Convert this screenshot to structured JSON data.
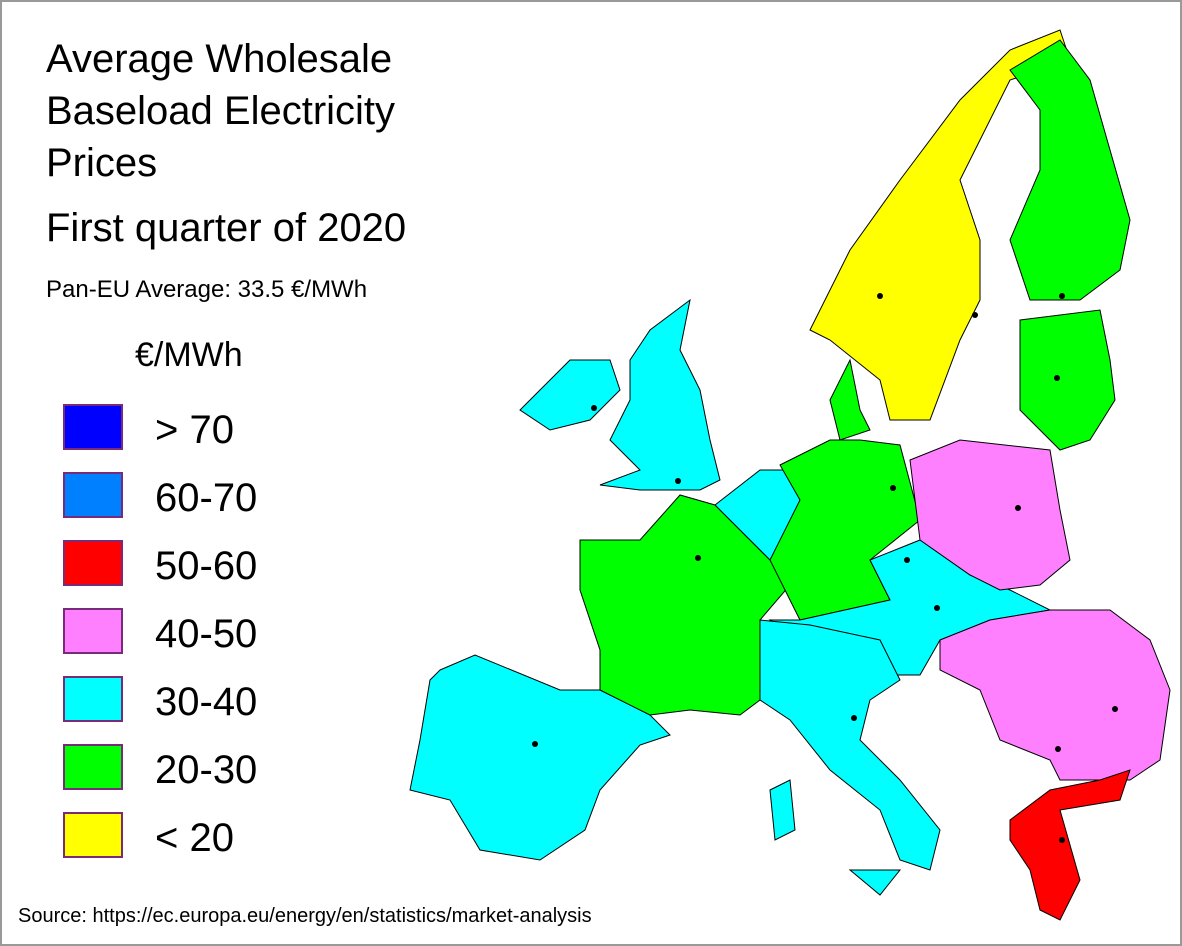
{
  "header": {
    "title_lines": [
      "Average Wholesale",
      "Baseload Electricity",
      "Prices"
    ],
    "subtitle": "First quarter of 2020",
    "average": "Pan-EU Average: 33.5 €/MWh"
  },
  "legend": {
    "unit": "€/MWh",
    "items": [
      {
        "label": "> 70",
        "color": "#0000ff"
      },
      {
        "label": "60-70",
        "color": "#0080ff"
      },
      {
        "label": "50-60",
        "color": "#ff0000"
      },
      {
        "label": "40-50",
        "color": "#ff80ff"
      },
      {
        "label": "30-40",
        "color": "#00ffff"
      },
      {
        "label": "20-30",
        "color": "#00ff00"
      },
      {
        "label": "< 20",
        "color": "#ffff00"
      }
    ]
  },
  "source": "Source: https://ec.europa.eu/energy/en/statistics/market-analysis"
}
